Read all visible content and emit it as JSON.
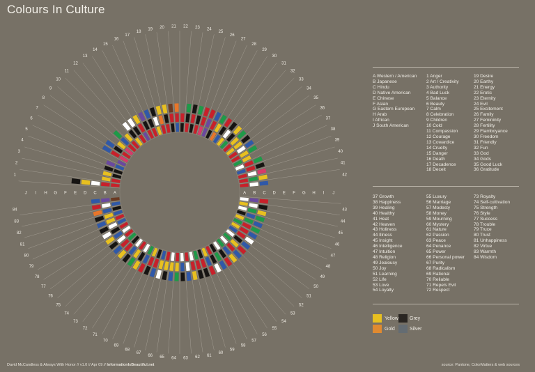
{
  "title": "Colours In Culture",
  "cultures": [
    {
      "key": "A",
      "name": "Western / American"
    },
    {
      "key": "B",
      "name": "Japanese"
    },
    {
      "key": "C",
      "name": "Hindu"
    },
    {
      "key": "D",
      "name": "Native American"
    },
    {
      "key": "E",
      "name": "Chinese"
    },
    {
      "key": "F",
      "name": "Asian"
    },
    {
      "key": "G",
      "name": "Eastern European"
    },
    {
      "key": "H",
      "name": "Arab"
    },
    {
      "key": "I",
      "name": "African"
    },
    {
      "key": "J",
      "name": "South American"
    }
  ],
  "legend_col2": [
    "1 Anger",
    "2 Art / Creativity",
    "3 Authority",
    "4 Bad Luck",
    "5 Balance",
    "6 Beauty",
    "7 Calm",
    "8 Celebration",
    "9 Children",
    "10 Cold",
    "11 Compassion",
    "12 Courage",
    "13 Cowardice",
    "14 Cruelty",
    "15 Danger",
    "16 Death",
    "17 Decadence",
    "18 Deceit"
  ],
  "legend_col3": [
    "19 Desire",
    "20 Earthy",
    "21 Energy",
    "22 Erotic",
    "23 Eternity",
    "24 Evil",
    "25 Excitement",
    "26 Family",
    "27 Femininity",
    "28 Fertility",
    "29 Flamboyance",
    "30 Freedom",
    "31 Friendly",
    "32 Fun",
    "33 God",
    "34 Gods",
    "35 Good Luck",
    "36 Gratitude"
  ],
  "legend_col4": [
    "37 Growth",
    "38 Happiness",
    "39 Healing",
    "40 Healthy",
    "41 Heat",
    "42 Heaven",
    "43 Holiness",
    "44 Illness",
    "45 Insight",
    "46 Intelligence",
    "47 Intuition",
    "48 Religion",
    "49 Jealousy",
    "50 Joy",
    "51 Learning",
    "52 Life",
    "53 Love",
    "54 Loyalty"
  ],
  "legend_col5": [
    "55 Luxury",
    "56 Marriage",
    "57 Modesty",
    "58 Money",
    "59 Mourning",
    "60 Mystery",
    "61 Nature",
    "62 Passion",
    "63 Peace",
    "64 Penance",
    "65 Power",
    "66 Personal power",
    "67 Purity",
    "68 Radicalism",
    "69 Rational",
    "70 Reliable",
    "71 Repels Evil",
    "72 Respect"
  ],
  "legend_col6": [
    "73 Royalty",
    "74 Self-cultivation",
    "75 Strength",
    "76 Style",
    "77 Success",
    "78 Trouble",
    "79 Truce",
    "80 Trust",
    "81 Unhappiness",
    "82 Virtue",
    "83 Warmth",
    "84 Wisdom"
  ],
  "swatches": [
    {
      "label": "Yellow",
      "color": "#e8c020"
    },
    {
      "label": "Grey",
      "color": "#2a2622"
    },
    {
      "label": "Gold",
      "color": "#e08a30"
    },
    {
      "label": "Silver",
      "color": "#646c72"
    }
  ],
  "palette": {
    "R": "#c8202a",
    "Y": "#e8c020",
    "W": "#ffffff",
    "K": "#161412",
    "G": "#1e9a48",
    "B": "#2f58a8",
    "P": "#6a48a0",
    "O": "#e8762a",
    "N": "#6a3a22",
    "M": "#d83a6a",
    "S": "#646c72"
  },
  "grid": [
    "RRWYK.....",
    "RY........",
    "KY........",
    "KK........",
    "BP........",
    "P.........",
    "MRB.......",
    "RKB.......",
    "MY........",
    "RBG.......",
    "RY.......",
    "YKW.......",
    "RKW.......",
    "PRY.......",
    "RKP.......",
    "RKB.......",
    "YWK.......",
    "ROY.......",
    "RKY.......",
    "KRN.......",
    "BRO.......",
    "KR........",
    "RKG.......",
    "KRK.......",
    "RKG.......",
    "MRR.......",
    "PPR.......",
    "KRB.......",
    "OYG.......",
    "BKR.......",
    "YWK.......",
    "GKY.......",
    "RYG.......",
    "YYK.......",
    "RWB.......",
    "RYG.......",
    "GY........",
    "WRG.......",
    "BRK.......",
    "RWM.......",
    "RGY.......",
    "RWB.......",
    "WPR.......",
    "YWK.......",
    "WGY.......",
    "KBG.......",
    "YGB.......",
    "GRG.......",
    "YRB.......",
    "BRW.......",
    "WKB.......",
    "GYR.......",
    "WRB.......",
    "GBY.......",
    "WKR.......",
    "KGB.......",
    "RKW.......",
    "YBR.......",
    "KRK.......",
    "GRK.......",
    "WRY.......",
    "RWB.......",
    "WBK.......",
    "RYG.......",
    "WYB.......",
    "RYK.......",
    "BYW.......",
    "KRB.......",
    "YRK.......",
    "GBR.......",
    "WKY.......",
    "RYG.......",
    "WBK.......",
    "KRY.......",
    "GRB.......",
    "RWK.......",
    "WBY.......",
    "RKW.......",
    "BWK.......",
    "RYB.......",
    "BYK.......",
    "KBO.......",
    "BWR.......",
    "NPB......."
  ],
  "footer_left": "David McCandless & Always With Honor // v1.0 // Apr 09 //",
  "footer_brand": "InformationIsBeautiful.net",
  "footer_right": "source: Pantone, ColorMatters & web sources"
}
